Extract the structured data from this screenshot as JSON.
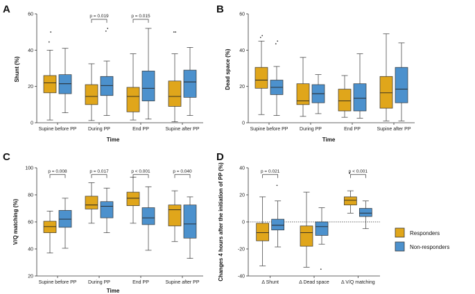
{
  "colors": {
    "responders": "#E0A61B",
    "non_responders": "#4C91CD",
    "axis": "#333333",
    "median": "#222222"
  },
  "legend": [
    {
      "name": "Responders",
      "color": "#E0A61B"
    },
    {
      "name": "Non-responders",
      "color": "#4C91CD"
    }
  ],
  "chart_data": [
    {
      "id": "A",
      "panel_label": "A",
      "type": "boxplot",
      "ylabel": "Shunt (%)",
      "xlabel": "Time",
      "ylim": [
        0,
        60
      ],
      "yticks": [
        "0",
        "20",
        "40",
        "60"
      ],
      "categories": [
        "Supine before  PP",
        "During PP",
        "End PP",
        "Supine after PP"
      ],
      "series": [
        {
          "name": "Responders",
          "boxes": [
            {
              "min": 1.5,
              "q1": 16.5,
              "med": 22,
              "q3": 26,
              "max": 40,
              "out": [
                44.5,
                50
              ]
            },
            {
              "min": 1.2,
              "q1": 10,
              "med": 14.5,
              "q3": 21,
              "max": 32.5,
              "out": []
            },
            {
              "min": 1.5,
              "q1": 6,
              "med": 14.5,
              "q3": 19.5,
              "max": 38,
              "out": []
            },
            {
              "min": 0.5,
              "q1": 9,
              "med": 14.5,
              "q3": 23,
              "max": 38,
              "out": [
                50,
                50
              ]
            }
          ]
        },
        {
          "name": "Non-responders",
          "boxes": [
            {
              "min": 5.5,
              "q1": 16,
              "med": 21.5,
              "q3": 26.5,
              "max": 41,
              "out": []
            },
            {
              "min": 4,
              "q1": 15,
              "med": 20.5,
              "q3": 25.5,
              "max": 34,
              "out": [
                50.5,
                52
              ]
            },
            {
              "min": 2,
              "q1": 12,
              "med": 19,
              "q3": 28.5,
              "max": 52,
              "out": []
            },
            {
              "min": 4,
              "q1": 14,
              "med": 22.5,
              "q3": 29,
              "max": 41.5,
              "out": []
            }
          ]
        }
      ],
      "pvalues": [
        {
          "cat": 1,
          "y": 57,
          "label": "p = 0.019"
        },
        {
          "cat": 2,
          "y": 57,
          "label": "p = 0.015"
        }
      ],
      "zero_line": false
    },
    {
      "id": "B",
      "panel_label": "B",
      "type": "boxplot",
      "ylabel": "Dead space (%)",
      "xlabel": "Time",
      "ylim": [
        0,
        60
      ],
      "yticks": [
        "0",
        "20",
        "40",
        "60"
      ],
      "categories": [
        "Supine before  PP",
        "During PP",
        "End PP",
        "Supine after PP"
      ],
      "series": [
        {
          "name": "Responders",
          "boxes": [
            {
              "min": 4.5,
              "q1": 19,
              "med": 23.5,
              "q3": 30.5,
              "max": 45,
              "out": [
                47,
                48
              ]
            },
            {
              "min": 3.5,
              "q1": 10,
              "med": 12,
              "q3": 21.5,
              "max": 36,
              "out": []
            },
            {
              "min": 3,
              "q1": 6.5,
              "med": 12,
              "q3": 18.5,
              "max": 26,
              "out": []
            },
            {
              "min": 1,
              "q1": 8,
              "med": 16.5,
              "q3": 25.5,
              "max": 49,
              "out": []
            }
          ]
        },
        {
          "name": "Non-responders",
          "boxes": [
            {
              "min": 4,
              "q1": 15.5,
              "med": 19.5,
              "q3": 23.5,
              "max": 31,
              "out": [
                43.5,
                45
              ]
            },
            {
              "min": 5,
              "q1": 11,
              "med": 16,
              "q3": 21,
              "max": 26.5,
              "out": []
            },
            {
              "min": 2.5,
              "q1": 6.5,
              "med": 13.5,
              "q3": 21.5,
              "max": 38,
              "out": []
            },
            {
              "min": 1,
              "q1": 11,
              "med": 18.5,
              "q3": 30.5,
              "max": 44,
              "out": []
            }
          ]
        }
      ],
      "pvalues": [],
      "zero_line": false
    },
    {
      "id": "C",
      "panel_label": "C",
      "type": "boxplot",
      "ylabel": "V/Q matching (%)",
      "xlabel": "Time",
      "ylim": [
        20,
        100
      ],
      "yticks": [
        "20",
        "40",
        "60",
        "80",
        "100"
      ],
      "categories": [
        "Supine before  PP",
        "During PP",
        "End PP",
        "Supine after PP"
      ],
      "series": [
        {
          "name": "Responders",
          "boxes": [
            {
              "min": 37,
              "q1": 52,
              "med": 56.5,
              "q3": 60.5,
              "max": 68,
              "out": []
            },
            {
              "min": 59,
              "q1": 69.5,
              "med": 72.5,
              "q3": 79,
              "max": 89,
              "out": []
            },
            {
              "min": 59,
              "q1": 72,
              "med": 77.5,
              "q3": 82,
              "max": 93,
              "out": []
            },
            {
              "min": 45.5,
              "q1": 57,
              "med": 69,
              "q3": 72.5,
              "max": 83,
              "out": []
            }
          ]
        },
        {
          "name": "Non-responders",
          "boxes": [
            {
              "min": 40.5,
              "q1": 56,
              "med": 62,
              "q3": 68.5,
              "max": 77.5,
              "out": []
            },
            {
              "min": 52,
              "q1": 63,
              "med": 71.5,
              "q3": 75,
              "max": 85,
              "out": []
            },
            {
              "min": 39,
              "q1": 58,
              "med": 63,
              "q3": 70.5,
              "max": 86,
              "out": []
            },
            {
              "min": 33,
              "q1": 48,
              "med": 58.5,
              "q3": 72.5,
              "max": 78.5,
              "out": []
            }
          ]
        }
      ],
      "pvalues": [
        {
          "cat": 0,
          "y": 95,
          "label": "p = 0.008"
        },
        {
          "cat": 1,
          "y": 95,
          "label": "p = 0.017"
        },
        {
          "cat": 2,
          "y": 95,
          "label": "p < 0.001"
        },
        {
          "cat": 3,
          "y": 95,
          "label": "p = 0.040"
        }
      ],
      "zero_line": false
    },
    {
      "id": "D",
      "panel_label": "D",
      "type": "boxplot",
      "ylabel": "Changes 4 hours after the initiation of PP (%)",
      "xlabel": "",
      "ylim": [
        -40,
        40
      ],
      "yticks": [
        "-40",
        "-20",
        "0",
        "20",
        "40"
      ],
      "categories": [
        "Δ Shunt",
        "Δ Dead space",
        "Δ V/Q matching"
      ],
      "series": [
        {
          "name": "Responders",
          "boxes": [
            {
              "min": -32.5,
              "q1": -14,
              "med": -8,
              "q3": -1,
              "max": 18.5,
              "out": []
            },
            {
              "min": -33.5,
              "q1": -18,
              "med": -8,
              "q3": -3,
              "max": 22,
              "out": []
            },
            {
              "min": 6.5,
              "q1": 12.5,
              "med": 16,
              "q3": 18.5,
              "max": 23,
              "out": [
                36
              ]
            }
          ]
        },
        {
          "name": "Non-responders",
          "boxes": [
            {
              "min": -18.5,
              "q1": -6,
              "med": -2.5,
              "q3": 2,
              "max": 15.5,
              "out": [
                27
              ]
            },
            {
              "min": -16.5,
              "q1": -10,
              "med": -3.5,
              "q3": 0,
              "max": 10.5,
              "out": [
                -35
              ]
            },
            {
              "min": -5,
              "q1": 4,
              "med": 6.5,
              "q3": 10,
              "max": 15.5,
              "out": []
            }
          ]
        }
      ],
      "pvalues": [
        {
          "cat": 0,
          "y": 35,
          "label": "p = 0.021"
        },
        {
          "cat": 2,
          "y": 35,
          "label": "p < 0.001"
        }
      ],
      "zero_line": true
    }
  ]
}
